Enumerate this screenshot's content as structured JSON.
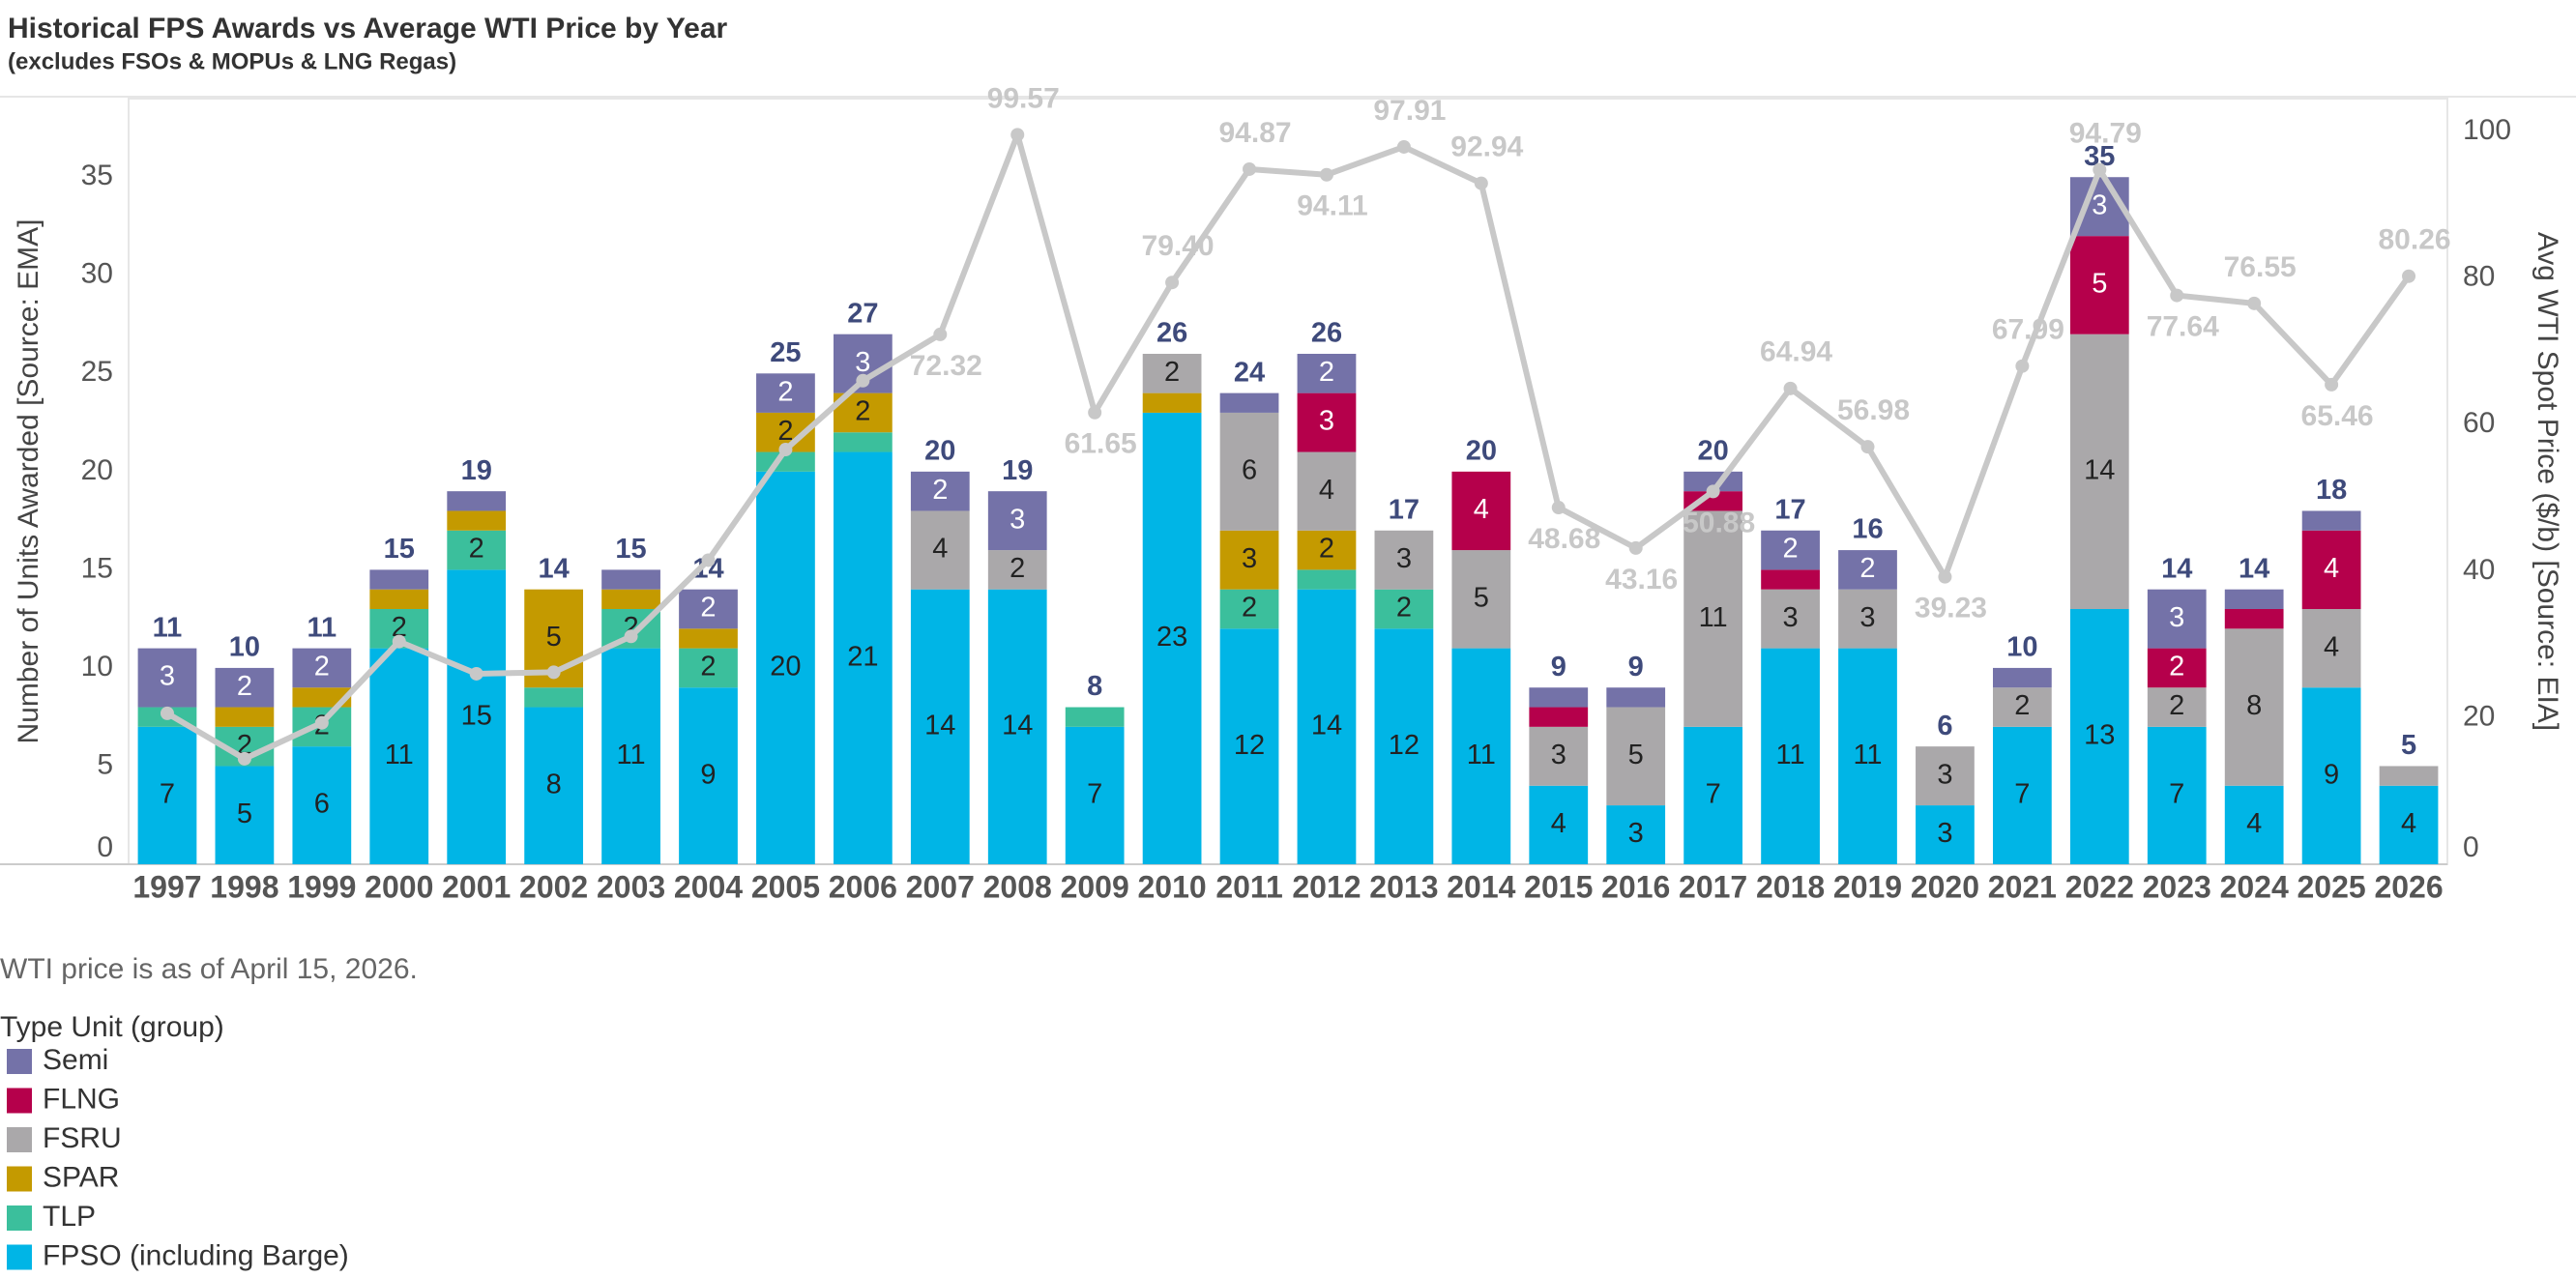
{
  "chart_data": {
    "type": "bar",
    "title": "Historical FPS Awards vs Average WTI Price by Year",
    "subtitle": "(excludes FSOs & MOPUs & LNG Regas)",
    "ylabel": "Number of Units Awarded [Source: EMA]",
    "y2label": "Avg WTI Spot Price ($/b) [Source: EIA]",
    "note": "WTI price is as of April 15, 2026.",
    "legend_title": "Type Unit (group)",
    "categories": [
      "1997",
      "1998",
      "1999",
      "2000",
      "2001",
      "2002",
      "2003",
      "2004",
      "2005",
      "2006",
      "2007",
      "2008",
      "2009",
      "2010",
      "2011",
      "2012",
      "2013",
      "2014",
      "2015",
      "2016",
      "2017",
      "2018",
      "2019",
      "2020",
      "2021",
      "2022",
      "2023",
      "2024",
      "2025",
      "2026"
    ],
    "series": [
      {
        "name": "FPSO (including Barge)",
        "color": "#00b5e6",
        "values": [
          7,
          5,
          6,
          11,
          15,
          8,
          11,
          9,
          20,
          21,
          14,
          14,
          7,
          23,
          12,
          14,
          12,
          11,
          4,
          3,
          7,
          11,
          11,
          3,
          7,
          13,
          7,
          4,
          9,
          4
        ]
      },
      {
        "name": "TLP",
        "color": "#3bbf9c",
        "values": [
          1,
          2,
          2,
          2,
          2,
          1,
          2,
          2,
          1,
          1,
          0,
          0,
          1,
          0,
          2,
          1,
          2,
          0,
          0,
          0,
          0,
          0,
          0,
          0,
          0,
          0,
          0,
          0,
          0,
          0
        ]
      },
      {
        "name": "SPAR",
        "color": "#c49a00",
        "values": [
          0,
          1,
          1,
          1,
          1,
          5,
          1,
          1,
          2,
          2,
          0,
          0,
          0,
          1,
          3,
          2,
          0,
          0,
          0,
          0,
          0,
          0,
          0,
          0,
          0,
          0,
          0,
          0,
          0,
          0
        ]
      },
      {
        "name": "FSRU",
        "color": "#aaa8aa",
        "values": [
          0,
          0,
          0,
          0,
          0,
          0,
          0,
          0,
          0,
          0,
          4,
          2,
          0,
          2,
          6,
          4,
          3,
          5,
          3,
          5,
          11,
          3,
          3,
          3,
          2,
          14,
          2,
          8,
          4,
          1
        ]
      },
      {
        "name": "FLNG",
        "color": "#b5004b",
        "values": [
          0,
          0,
          0,
          0,
          0,
          0,
          0,
          0,
          0,
          0,
          0,
          0,
          0,
          0,
          0,
          3,
          0,
          4,
          1,
          0,
          1,
          1,
          0,
          0,
          0,
          5,
          2,
          1,
          4,
          0
        ]
      },
      {
        "name": "Semi",
        "color": "#7472a8",
        "values": [
          3,
          2,
          2,
          1,
          1,
          0,
          1,
          2,
          2,
          3,
          2,
          3,
          0,
          0,
          1,
          2,
          0,
          0,
          1,
          1,
          1,
          2,
          2,
          0,
          1,
          3,
          3,
          1,
          1,
          0
        ]
      },
      {
        "type": "line",
        "axis": "y2",
        "color": "#c8c8c8",
        "values": [
          20.6,
          14.4,
          19.3,
          30.4,
          26.0,
          26.2,
          31.1,
          41.5,
          56.6,
          66.0,
          72.32,
          99.57,
          61.65,
          79.4,
          94.87,
          94.11,
          97.91,
          92.94,
          48.68,
          43.16,
          50.88,
          64.94,
          56.98,
          39.23,
          67.99,
          94.79,
          77.64,
          76.55,
          65.46,
          80.26
        ],
        "value_labels": [
          null,
          null,
          null,
          null,
          null,
          null,
          null,
          null,
          null,
          null,
          "72.32",
          "99.57",
          "61.65",
          "79.40",
          "94.87",
          "94.11",
          "97.91",
          "92.94",
          "48.68",
          "43.16",
          "50.88",
          "64.94",
          "56.98",
          "39.23",
          "67.99",
          "94.79",
          "77.64",
          "76.55",
          "65.46",
          "80.26"
        ]
      }
    ],
    "totals": [
      11,
      10,
      11,
      15,
      19,
      14,
      15,
      14,
      25,
      27,
      20,
      19,
      8,
      26,
      24,
      26,
      17,
      20,
      9,
      9,
      20,
      17,
      16,
      6,
      10,
      35,
      14,
      14,
      18,
      5
    ],
    "ylim": [
      0,
      39
    ],
    "yticks": [
      0,
      5,
      10,
      15,
      20,
      25,
      30,
      35
    ],
    "y2lim": [
      0,
      104.5
    ],
    "y2ticks": [
      0,
      20,
      40,
      60,
      80,
      100
    ],
    "grid": false
  }
}
